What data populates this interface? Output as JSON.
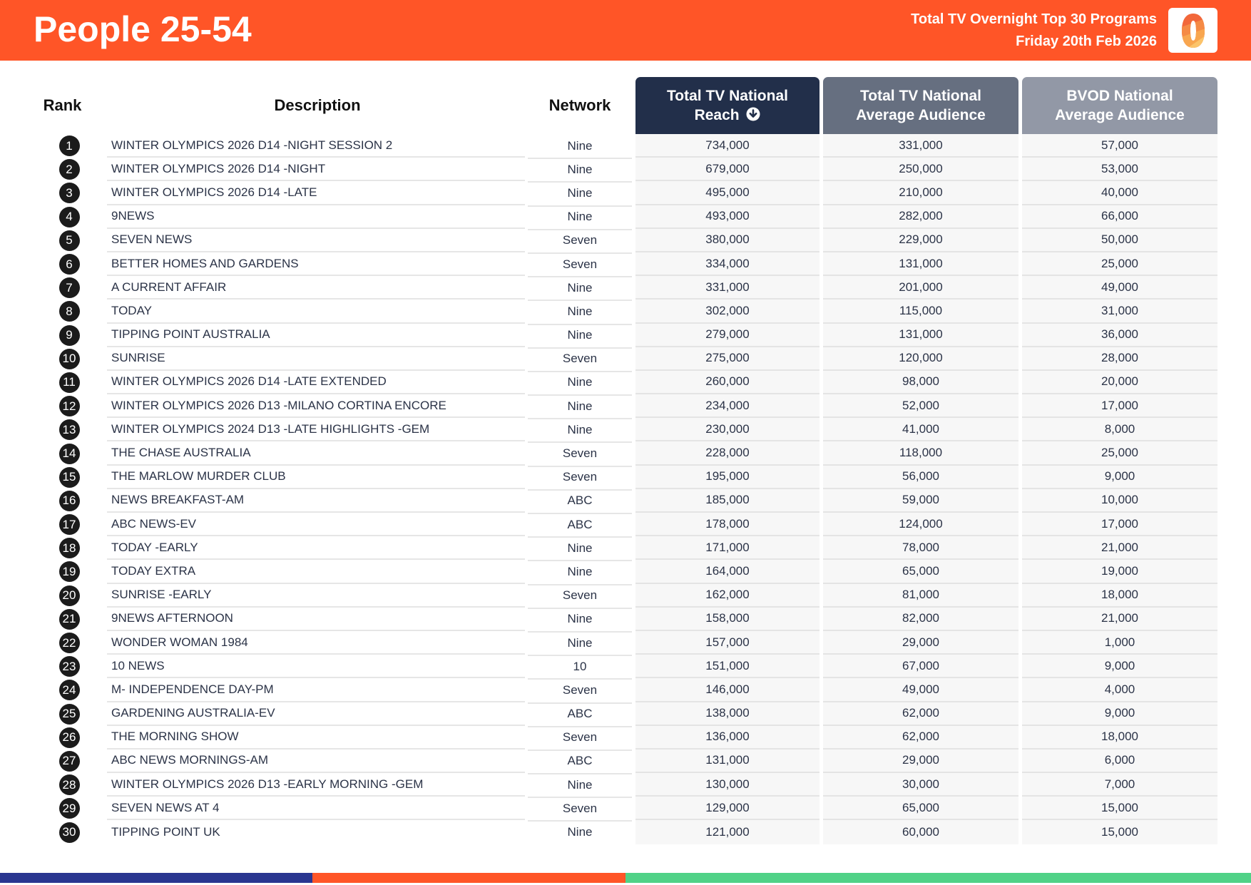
{
  "header": {
    "title": "People 25-54",
    "subtitle_line1": "Total TV Overnight Top 30 Programs",
    "subtitle_line2": "Friday 20th Feb 2026",
    "logo_icon": "oztam-zero-logo-icon"
  },
  "columns": {
    "rank": "Rank",
    "description": "Description",
    "network": "Network",
    "reach_line1": "Total TV National",
    "reach_line2": "Reach",
    "reach_sort_icon": "sort-descending-circle-icon",
    "avg_line1": "Total TV National",
    "avg_line2": "Average Audience",
    "bvod_line1": "BVOD National",
    "bvod_line2": "Average Audience"
  },
  "colors": {
    "header_bg": "#FF5527",
    "reach_header": "#222F4A",
    "avg_header": "#666F80",
    "bvod_header": "#9298A6",
    "footer_navy": "#2A3690",
    "footer_orange": "#FF5527",
    "footer_green": "#50D287"
  },
  "rows": [
    {
      "rank": "1",
      "description": "WINTER OLYMPICS 2026 D14 -NIGHT SESSION 2",
      "network": "Nine",
      "reach": "734,000",
      "avg": "331,000",
      "bvod": "57,000"
    },
    {
      "rank": "2",
      "description": "WINTER OLYMPICS 2026 D14 -NIGHT",
      "network": "Nine",
      "reach": "679,000",
      "avg": "250,000",
      "bvod": "53,000"
    },
    {
      "rank": "3",
      "description": "WINTER OLYMPICS 2026 D14 -LATE",
      "network": "Nine",
      "reach": "495,000",
      "avg": "210,000",
      "bvod": "40,000"
    },
    {
      "rank": "4",
      "description": "9NEWS",
      "network": "Nine",
      "reach": "493,000",
      "avg": "282,000",
      "bvod": "66,000"
    },
    {
      "rank": "5",
      "description": "SEVEN NEWS",
      "network": "Seven",
      "reach": "380,000",
      "avg": "229,000",
      "bvod": "50,000"
    },
    {
      "rank": "6",
      "description": "BETTER HOMES AND GARDENS",
      "network": "Seven",
      "reach": "334,000",
      "avg": "131,000",
      "bvod": "25,000"
    },
    {
      "rank": "7",
      "description": "A CURRENT AFFAIR",
      "network": "Nine",
      "reach": "331,000",
      "avg": "201,000",
      "bvod": "49,000"
    },
    {
      "rank": "8",
      "description": "TODAY",
      "network": "Nine",
      "reach": "302,000",
      "avg": "115,000",
      "bvod": "31,000"
    },
    {
      "rank": "9",
      "description": "TIPPING POINT AUSTRALIA",
      "network": "Nine",
      "reach": "279,000",
      "avg": "131,000",
      "bvod": "36,000"
    },
    {
      "rank": "10",
      "description": "SUNRISE",
      "network": "Seven",
      "reach": "275,000",
      "avg": "120,000",
      "bvod": "28,000"
    },
    {
      "rank": "11",
      "description": "WINTER OLYMPICS 2026 D14 -LATE EXTENDED",
      "network": "Nine",
      "reach": "260,000",
      "avg": "98,000",
      "bvod": "20,000"
    },
    {
      "rank": "12",
      "description": "WINTER OLYMPICS 2026 D13 -MILANO CORTINA ENCORE",
      "network": "Nine",
      "reach": "234,000",
      "avg": "52,000",
      "bvod": "17,000"
    },
    {
      "rank": "13",
      "description": "WINTER OLYMPICS 2024 D13 -LATE HIGHLIGHTS -GEM",
      "network": "Nine",
      "reach": "230,000",
      "avg": "41,000",
      "bvod": "8,000"
    },
    {
      "rank": "14",
      "description": "THE CHASE AUSTRALIA",
      "network": "Seven",
      "reach": "228,000",
      "avg": "118,000",
      "bvod": "25,000"
    },
    {
      "rank": "15",
      "description": "THE MARLOW MURDER CLUB",
      "network": "Seven",
      "reach": "195,000",
      "avg": "56,000",
      "bvod": "9,000"
    },
    {
      "rank": "16",
      "description": "NEWS BREAKFAST-AM",
      "network": "ABC",
      "reach": "185,000",
      "avg": "59,000",
      "bvod": "10,000"
    },
    {
      "rank": "17",
      "description": "ABC NEWS-EV",
      "network": "ABC",
      "reach": "178,000",
      "avg": "124,000",
      "bvod": "17,000"
    },
    {
      "rank": "18",
      "description": "TODAY -EARLY",
      "network": "Nine",
      "reach": "171,000",
      "avg": "78,000",
      "bvod": "21,000"
    },
    {
      "rank": "19",
      "description": "TODAY EXTRA",
      "network": "Nine",
      "reach": "164,000",
      "avg": "65,000",
      "bvod": "19,000"
    },
    {
      "rank": "20",
      "description": "SUNRISE -EARLY",
      "network": "Seven",
      "reach": "162,000",
      "avg": "81,000",
      "bvod": "18,000"
    },
    {
      "rank": "21",
      "description": "9NEWS AFTERNOON",
      "network": "Nine",
      "reach": "158,000",
      "avg": "82,000",
      "bvod": "21,000"
    },
    {
      "rank": "22",
      "description": "WONDER WOMAN 1984",
      "network": "Nine",
      "reach": "157,000",
      "avg": "29,000",
      "bvod": "1,000"
    },
    {
      "rank": "23",
      "description": "10 NEWS",
      "network": "10",
      "reach": "151,000",
      "avg": "67,000",
      "bvod": "9,000"
    },
    {
      "rank": "24",
      "description": "M- INDEPENDENCE DAY-PM",
      "network": "Seven",
      "reach": "146,000",
      "avg": "49,000",
      "bvod": "4,000"
    },
    {
      "rank": "25",
      "description": "GARDENING AUSTRALIA-EV",
      "network": "ABC",
      "reach": "138,000",
      "avg": "62,000",
      "bvod": "9,000"
    },
    {
      "rank": "26",
      "description": "THE MORNING SHOW",
      "network": "Seven",
      "reach": "136,000",
      "avg": "62,000",
      "bvod": "18,000"
    },
    {
      "rank": "27",
      "description": "ABC NEWS MORNINGS-AM",
      "network": "ABC",
      "reach": "131,000",
      "avg": "29,000",
      "bvod": "6,000"
    },
    {
      "rank": "28",
      "description": "WINTER OLYMPICS 2026 D13 -EARLY MORNING -GEM",
      "network": "Nine",
      "reach": "130,000",
      "avg": "30,000",
      "bvod": "7,000"
    },
    {
      "rank": "29",
      "description": "SEVEN NEWS AT 4",
      "network": "Seven",
      "reach": "129,000",
      "avg": "65,000",
      "bvod": "15,000"
    },
    {
      "rank": "30",
      "description": "TIPPING POINT UK",
      "network": "Nine",
      "reach": "121,000",
      "avg": "60,000",
      "bvod": "15,000"
    }
  ]
}
